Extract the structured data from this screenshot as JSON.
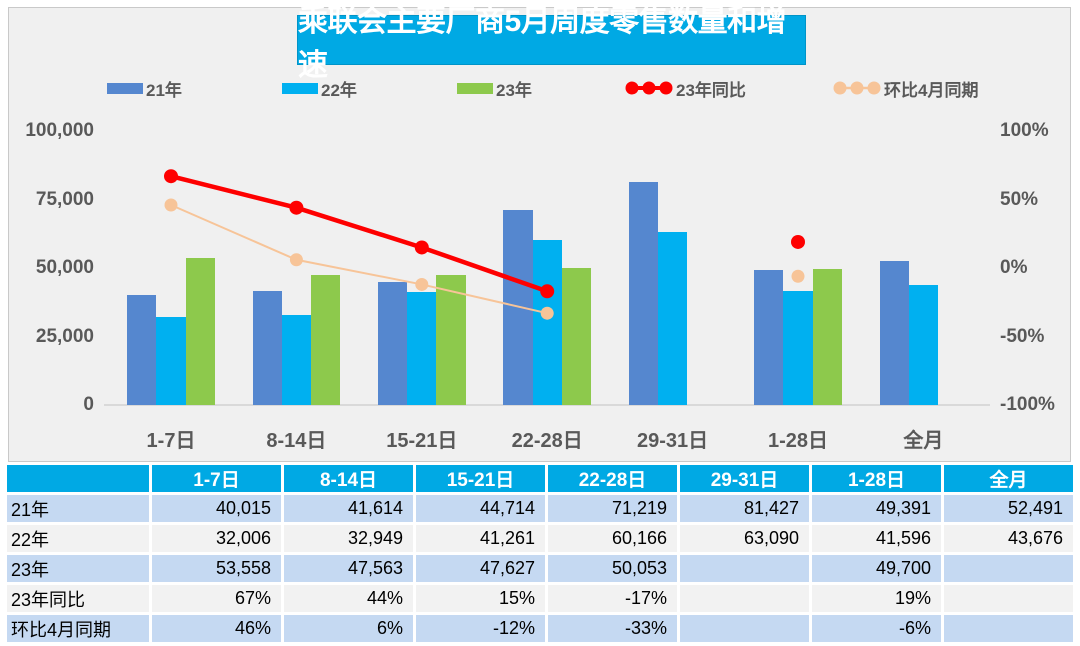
{
  "title": "乘联会主要厂商5月周度零售数量和增速",
  "colors": {
    "title_bg": "#00a9e4",
    "table_header_bg": "#00a9e4",
    "bar_blue": "#5587cf",
    "bar_cyan": "#00b0f0",
    "bar_green": "#8dc94c",
    "line_red": "#fe0000",
    "line_peach": "#f7c498",
    "row_blue": "#c5d9f2",
    "row_gray": "#f2f2f2",
    "axis_text": "#595959"
  },
  "legend": {
    "items": [
      {
        "label": "21年",
        "kind": "bar",
        "color": "#5587cf"
      },
      {
        "label": "22年",
        "kind": "bar",
        "color": "#00b0f0"
      },
      {
        "label": "23年",
        "kind": "bar",
        "color": "#8dc94c"
      },
      {
        "label": "23年同比",
        "kind": "line",
        "color": "#fe0000"
      },
      {
        "label": "环比4月同期",
        "kind": "line",
        "color": "#f7c498"
      }
    ]
  },
  "chart_data": {
    "type": "bar",
    "subtype": "bar+line combo, dual axis",
    "categories": [
      "1-7日",
      "8-14日",
      "15-21日",
      "22-28日",
      "29-31日",
      "1-28日",
      "全月"
    ],
    "series": [
      {
        "name": "21年",
        "kind": "bar",
        "axis": "left",
        "color": "#5587cf",
        "values": [
          40015,
          41614,
          44714,
          71219,
          81427,
          49391,
          52491
        ]
      },
      {
        "name": "22年",
        "kind": "bar",
        "axis": "left",
        "color": "#00b0f0",
        "values": [
          32006,
          32949,
          41261,
          60166,
          63090,
          41596,
          43676
        ]
      },
      {
        "name": "23年",
        "kind": "bar",
        "axis": "left",
        "color": "#8dc94c",
        "values": [
          53558,
          47563,
          47627,
          50053,
          null,
          49700,
          null
        ]
      },
      {
        "name": "23年同比",
        "kind": "line",
        "axis": "right",
        "color": "#fe0000",
        "values_pct": [
          67,
          44,
          15,
          -17,
          null,
          19,
          null
        ]
      },
      {
        "name": "环比4月同期",
        "kind": "line",
        "axis": "right",
        "color": "#f7c498",
        "values_pct": [
          46,
          6,
          -12,
          -33,
          null,
          -6,
          null
        ]
      }
    ],
    "left_axis": {
      "min": 0,
      "max": 100000,
      "ticks": [
        "100,000",
        "75,000",
        "50,000",
        "25,000",
        "0"
      ]
    },
    "right_axis": {
      "min": -1.0,
      "max": 1.0,
      "ticks": [
        "100%",
        "50%",
        "0%",
        "-50%",
        "-100%"
      ]
    },
    "grid": "off",
    "legend_position": "top"
  },
  "table": {
    "headers": [
      "",
      "1-7日",
      "8-14日",
      "15-21日",
      "22-28日",
      "29-31日",
      "1-28日",
      "全月"
    ],
    "rows": [
      {
        "label": "21年",
        "values": [
          "40,015",
          "41,614",
          "44,714",
          "71,219",
          "81,427",
          "49,391",
          "52,491"
        ]
      },
      {
        "label": "22年",
        "values": [
          "32,006",
          "32,949",
          "41,261",
          "60,166",
          "63,090",
          "41,596",
          "43,676"
        ]
      },
      {
        "label": "23年",
        "values": [
          "53,558",
          "47,563",
          "47,627",
          "50,053",
          "",
          "49,700",
          ""
        ]
      },
      {
        "label": "23年同比",
        "values": [
          "67%",
          "44%",
          "15%",
          "-17%",
          "",
          "19%",
          ""
        ]
      },
      {
        "label": "环比4月同期",
        "values": [
          "46%",
          "6%",
          "-12%",
          "-33%",
          "",
          "-6%",
          ""
        ]
      }
    ]
  }
}
